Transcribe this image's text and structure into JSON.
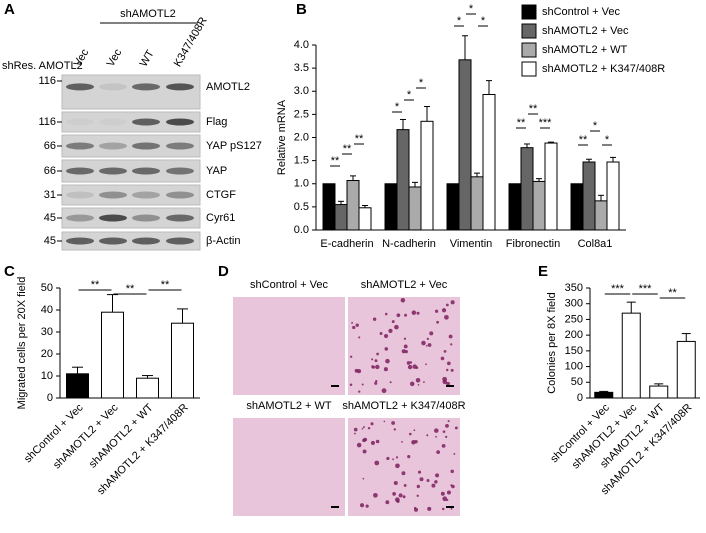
{
  "panel_labels": [
    "A",
    "B",
    "C",
    "D",
    "E"
  ],
  "blot": {
    "group_label": "shAMOTL2",
    "row_label": "shRes. AMOTL2",
    "lanes": [
      "Vec",
      "Vec",
      "WT",
      "K347/408R"
    ],
    "rows": [
      {
        "marker": "116",
        "protein": "AMOTL2"
      },
      {
        "marker": "116",
        "protein": "Flag"
      },
      {
        "marker": "66",
        "protein": "YAP pS127"
      },
      {
        "marker": "66",
        "protein": "YAP"
      },
      {
        "marker": "31",
        "protein": "CTGF"
      },
      {
        "marker": "45",
        "protein": "Cyr61"
      },
      {
        "marker": "45",
        "protein": "β-Actin"
      }
    ]
  },
  "images": {
    "labels": [
      "shControl + Vec",
      "shAMOTL2 + Vec",
      "shAMOTL2 + WT",
      "shAMOTL2 + K347/408R"
    ]
  },
  "chart_data": [
    {
      "type": "bar",
      "ylabel": "Relative mRNA",
      "categories": [
        "E-cadherin",
        "N-cadherin",
        "Vimentin",
        "Fibronectin",
        "Col8a1"
      ],
      "series": [
        {
          "name": "shControl + Vec",
          "color": "#000000",
          "values": [
            1.0,
            1.0,
            1.0,
            1.0,
            1.0
          ],
          "errors": [
            0,
            0,
            0,
            0,
            0
          ]
        },
        {
          "name": "shAMOTL2 + Vec",
          "color": "#666666",
          "values": [
            0.55,
            2.17,
            3.68,
            1.78,
            1.47
          ],
          "errors": [
            0.07,
            0.22,
            0.52,
            0.08,
            0.06
          ]
        },
        {
          "name": "shAMOTL2 + WT",
          "color": "#aaaaaa",
          "values": [
            1.07,
            0.93,
            1.15,
            1.05,
            0.63
          ],
          "errors": [
            0.1,
            0.1,
            0.08,
            0.06,
            0.12
          ]
        },
        {
          "name": "shAMOTL2 + K347/408R",
          "color": "#ffffff",
          "values": [
            0.48,
            2.35,
            2.93,
            1.88,
            1.47
          ],
          "errors": [
            0.05,
            0.32,
            0.3,
            0.02,
            0.1
          ]
        }
      ],
      "ylim": [
        0,
        4
      ],
      "yticks": [
        {
          "value": 0,
          "label": "0.0"
        },
        {
          "value": 0.5,
          "label": "0.5"
        },
        {
          "value": 1,
          "label": "1.0"
        },
        {
          "value": 1.5,
          "label": "1.5"
        },
        {
          "value": 2,
          "label": "2.0"
        },
        {
          "value": 2.5,
          "label": "2.5"
        },
        {
          "value": 3,
          "label": "3.0"
        },
        {
          "value": 3.5,
          "label": "3.5"
        },
        {
          "value": 4,
          "label": "4.0"
        }
      ],
      "legend": "upper right",
      "annotations": [
        "**",
        "**",
        "**",
        "*",
        "*",
        "*",
        "*",
        "*",
        "*",
        "**",
        "**",
        "***",
        "**",
        "*",
        "*"
      ]
    },
    {
      "type": "bar",
      "ylabel": "Migrated cells per 20X field",
      "categories": [
        "shControl + Vec",
        "shAMOTL2 + Vec",
        "shAMOTL2 + WT",
        "shAMOTL2 + K347/408R"
      ],
      "values": [
        11,
        39,
        9,
        34
      ],
      "errors": [
        3,
        8,
        1.2,
        6.5
      ],
      "colors": [
        "#000000",
        "#ffffff",
        "#ffffff",
        "#ffffff"
      ],
      "ylim": [
        0,
        50
      ],
      "yticks": [
        0,
        10,
        20,
        30,
        40,
        50
      ],
      "annotations": [
        "**",
        "**",
        "**"
      ]
    },
    {
      "type": "bar",
      "ylabel": "Colonies per 8X field",
      "categories": [
        "shControl + Vec",
        "shAMOTL2 + Vec",
        "shAMOTL2 + WT",
        "shAMOTL2 + K347/408R"
      ],
      "values": [
        18,
        270,
        38,
        180
      ],
      "errors": [
        3,
        35,
        7,
        25
      ],
      "colors": [
        "#000000",
        "#ffffff",
        "#ffffff",
        "#ffffff"
      ],
      "ylim": [
        0,
        350
      ],
      "yticks": [
        0,
        50,
        100,
        150,
        200,
        250,
        300,
        350
      ],
      "annotations": [
        "***",
        "***",
        "**"
      ]
    }
  ]
}
